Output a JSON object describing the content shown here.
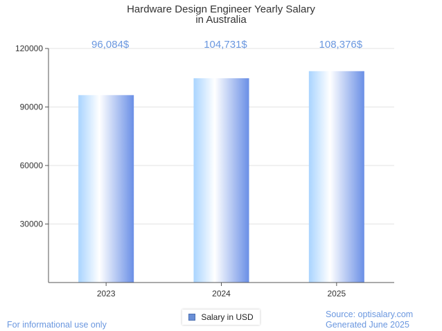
{
  "chart_data": {
    "type": "bar",
    "title_lines": [
      "Hardware Design Engineer Yearly Salary",
      "in Australia"
    ],
    "categories": [
      "2023",
      "2024",
      "2025"
    ],
    "series": [
      {
        "name": "Salary in USD",
        "values": [
          96084,
          104731,
          108376
        ]
      }
    ],
    "data_labels": [
      "96,084$",
      "104,731$",
      "108,376$"
    ],
    "ylim": [
      0,
      120000
    ],
    "yticks": [
      30000,
      60000,
      90000,
      120000
    ],
    "ytick_labels": [
      "30000",
      "60000",
      "90000",
      "120000"
    ],
    "grid": true,
    "legend_position": "bottom-center",
    "colors": {
      "bar_edge": "#6a8fe6",
      "bar_light": "#ffffff",
      "bar_left": "#a9d4ff",
      "label": "#6a97df",
      "grid": "#e3e3e3"
    }
  },
  "legend": {
    "label": "Salary in USD"
  },
  "footer": {
    "left": "For informational use only",
    "source": "Source: optisalary.com",
    "generated": "Generated June 2025"
  }
}
